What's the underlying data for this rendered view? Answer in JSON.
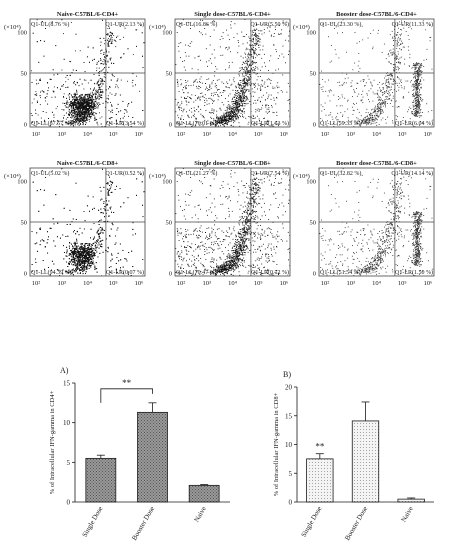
{
  "colors": {
    "ink": "#1a1a1a",
    "frame": "#444444",
    "bar_fill": "#9a9a9a",
    "bar_fill_light": "#d9d9d9"
  },
  "chart_data": [
    {
      "type": "scatter",
      "title": "Naive-C57BL/6-CD4+",
      "y_exponent_label": "(×10⁴)",
      "y_ticks": [
        "0",
        "50",
        "100"
      ],
      "x_ticks": [
        "10²",
        "10³",
        "10⁴",
        "10⁵",
        "10⁶"
      ],
      "quadrants": {
        "UL": "Q1-UL(8.76 %)",
        "UR": "Q1-UR(2.13 %)",
        "LL": "Q1-LL(87.57 %)",
        "LR": "Q1-LR(3.54 %)"
      },
      "density": "very-high"
    },
    {
      "type": "scatter",
      "title": "Single dose-C57BL/6-CD4+",
      "y_exponent_label": "(×10⁴)",
      "y_ticks": [
        "0",
        "50",
        "100"
      ],
      "x_ticks": [
        "10²",
        "10³",
        "10⁴",
        "10⁵",
        "10⁶"
      ],
      "quadrants": {
        "UL": "Q1-UL(16.86 %)",
        "UR": "Q1-UR(5.50 %)",
        "LL": "Q1-LL(76.01 %)",
        "LR": "Q1-LR(1.63 %)"
      },
      "density": "medium"
    },
    {
      "type": "scatter",
      "title": "Booster dose-C57BL/6-CD4+",
      "y_exponent_label": "(×10⁴)",
      "y_ticks": [
        "0",
        "50",
        "100"
      ],
      "x_ticks": [
        "10²",
        "10³",
        "10⁴",
        "10⁵",
        "10⁶"
      ],
      "quadrants": {
        "UL": "Q1-UL(23.30 %)",
        "UR": "Q1-UR(11.33 %)",
        "LL": "Q1-LL(59.33 %)",
        "LR": "Q1-LR(6.04 %)"
      },
      "density": "low"
    },
    {
      "type": "scatter",
      "title": "Naive-C57BL/6-CD8+",
      "y_exponent_label": "(×10⁴)",
      "y_ticks": [
        "0",
        "50",
        "100"
      ],
      "x_ticks": [
        "10²",
        "10³",
        "10⁴",
        "10⁵",
        "10⁶"
      ],
      "quadrants": {
        "UL": "Q1-UL(5.02 %)",
        "UR": "Q1-UR(0.52 %)",
        "LL": "Q1-LL(94.39 %)",
        "LR": "Q1-LR(0.07 %)"
      },
      "density": "very-high"
    },
    {
      "type": "scatter",
      "title": "Single dose-C57BL/6-CD8+",
      "y_exponent_label": "(×10⁴)",
      "y_ticks": [
        "0",
        "50",
        "100"
      ],
      "x_ticks": [
        "10²",
        "10³",
        "10⁴",
        "10⁵",
        "10⁶"
      ],
      "quadrants": {
        "UL": "Q1-UL(21.27 %)",
        "UR": "Q1-UR(7.54 %)",
        "LL": "Q1-LL(70.47 %)",
        "LR": "Q1-LR(0.72 %)"
      },
      "density": "medium"
    },
    {
      "type": "scatter",
      "title": "Booster dose-C57BL/6-CD8+",
      "y_exponent_label": "(×10⁴)",
      "y_ticks": [
        "0",
        "50",
        "100"
      ],
      "x_ticks": [
        "10²",
        "10³",
        "10⁴",
        "10⁵",
        "10⁶"
      ],
      "quadrants": {
        "UL": "Q1-UL(32.82 %)",
        "UR": "Q1-UR(14.14 %)",
        "LL": "Q1-LL(51.54 %)",
        "LR": "Q1-LR(1.50 %)"
      },
      "density": "low"
    },
    {
      "type": "bar",
      "panel_label": "A)",
      "ylabel": "% of Intracellular IFN-gamma in CD4+",
      "categories": [
        "Single Dose",
        "Booster Dose",
        "Naive"
      ],
      "values": [
        5.5,
        11.3,
        2.1
      ],
      "errors": [
        0.4,
        1.2,
        0.1
      ],
      "ylim": [
        0,
        15
      ],
      "yticks": [
        0,
        5,
        10,
        15
      ],
      "annotation": {
        "text": "**",
        "between": [
          "Single Dose",
          "Booster Dose"
        ]
      },
      "pattern": "dense"
    },
    {
      "type": "bar",
      "panel_label": "B)",
      "ylabel": "% of Intracellular IFN-gamma in CD8+",
      "categories": [
        "Single Dose",
        "Booster Dose",
        "Naive"
      ],
      "values": [
        7.5,
        14.1,
        0.5
      ],
      "errors": [
        0.9,
        3.3,
        0.2
      ],
      "ylim": [
        0,
        20
      ],
      "yticks": [
        0,
        5,
        10,
        15,
        20
      ],
      "annotation": {
        "text": "**",
        "above": "Single Dose"
      },
      "pattern": "sparse"
    }
  ]
}
